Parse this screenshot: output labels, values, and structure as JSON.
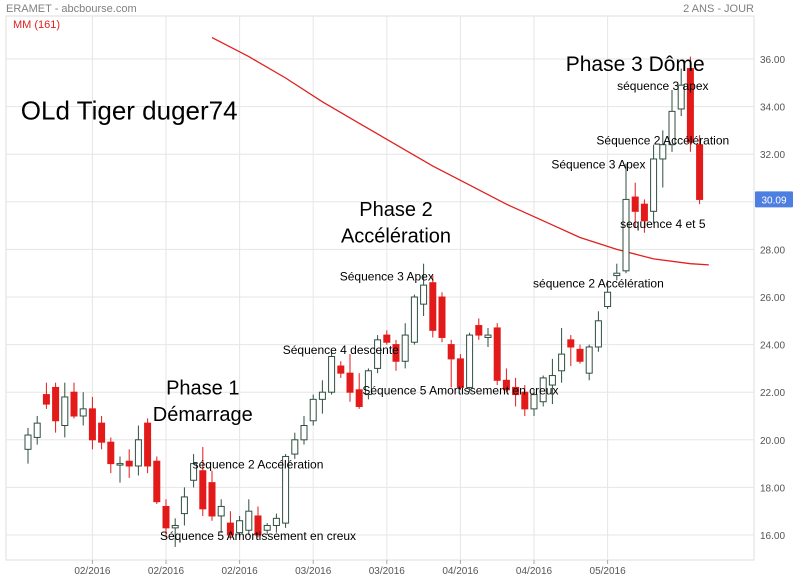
{
  "header": {
    "title": "ERAMET - abcbourse.com",
    "period": "2 ANS - JOUR",
    "indicator": "MM (161)"
  },
  "colors": {
    "up_candle": "#ffffff",
    "up_candle_stroke": "#2f4f3f",
    "down_candle": "#e31a1a",
    "moving_average": "#e02020",
    "last_price_badge": "#4d7fe0",
    "grid": "#e6e6e6",
    "axis_text": "#555555"
  },
  "chart_data": {
    "type": "candlestick",
    "title": "",
    "xlabel": "",
    "ylabel": "",
    "ylim": [
      15.2,
      37.0
    ],
    "y_ticks": [
      16,
      18,
      20,
      22,
      24,
      26,
      28,
      30,
      32,
      34,
      36
    ],
    "y_tick_labels": [
      "16.00",
      "18.00",
      "20.00",
      "22.00",
      "24.00",
      "26.00",
      "28.00",
      "30.00",
      "32.00",
      "34.00",
      "36.00"
    ],
    "x_tick_labels": [
      {
        "index": 7,
        "label": "02/2016"
      },
      {
        "index": 15,
        "label": "02/2016"
      },
      {
        "index": 23,
        "label": "02/2016"
      },
      {
        "index": 31,
        "label": "03/2016"
      },
      {
        "index": 39,
        "label": "03/2016"
      },
      {
        "index": 47,
        "label": "04/2016"
      },
      {
        "index": 55,
        "label": "04/2016"
      },
      {
        "index": 63,
        "label": "05/2016"
      }
    ],
    "last_price": "30.09",
    "candles": [
      {
        "o": 19.6,
        "h": 20.5,
        "l": 19.0,
        "c": 20.2
      },
      {
        "o": 20.1,
        "h": 21.0,
        "l": 19.8,
        "c": 20.7
      },
      {
        "o": 21.9,
        "h": 22.4,
        "l": 21.3,
        "c": 21.5
      },
      {
        "o": 22.2,
        "h": 22.4,
        "l": 20.3,
        "c": 20.8
      },
      {
        "o": 20.6,
        "h": 22.4,
        "l": 20.1,
        "c": 21.8
      },
      {
        "o": 22.0,
        "h": 22.4,
        "l": 20.9,
        "c": 21.0
      },
      {
        "o": 21.0,
        "h": 22.0,
        "l": 20.6,
        "c": 21.3
      },
      {
        "o": 21.3,
        "h": 21.8,
        "l": 19.6,
        "c": 20.0
      },
      {
        "o": 20.7,
        "h": 21.0,
        "l": 19.6,
        "c": 19.9
      },
      {
        "o": 19.9,
        "h": 20.1,
        "l": 18.6,
        "c": 19.0
      },
      {
        "o": 19.0,
        "h": 19.3,
        "l": 18.2,
        "c": 19.0
      },
      {
        "o": 19.1,
        "h": 19.6,
        "l": 18.4,
        "c": 18.9
      },
      {
        "o": 18.9,
        "h": 20.6,
        "l": 18.5,
        "c": 20.0
      },
      {
        "o": 20.7,
        "h": 20.9,
        "l": 18.6,
        "c": 18.9
      },
      {
        "o": 19.1,
        "h": 19.3,
        "l": 17.3,
        "c": 17.4
      },
      {
        "o": 17.2,
        "h": 17.5,
        "l": 15.9,
        "c": 16.3
      },
      {
        "o": 16.3,
        "h": 16.7,
        "l": 15.5,
        "c": 16.4
      },
      {
        "o": 16.9,
        "h": 18.0,
        "l": 16.4,
        "c": 17.6
      },
      {
        "o": 18.3,
        "h": 19.4,
        "l": 18.0,
        "c": 19.0
      },
      {
        "o": 18.7,
        "h": 19.7,
        "l": 16.8,
        "c": 17.1
      },
      {
        "o": 18.2,
        "h": 18.7,
        "l": 16.6,
        "c": 16.8
      },
      {
        "o": 16.8,
        "h": 17.5,
        "l": 16.1,
        "c": 17.2
      },
      {
        "o": 16.5,
        "h": 17.0,
        "l": 15.8,
        "c": 16.0
      },
      {
        "o": 16.1,
        "h": 16.8,
        "l": 15.9,
        "c": 16.6
      },
      {
        "o": 16.2,
        "h": 17.5,
        "l": 16.0,
        "c": 17.0
      },
      {
        "o": 16.8,
        "h": 17.2,
        "l": 15.9,
        "c": 16.0
      },
      {
        "o": 16.2,
        "h": 16.5,
        "l": 16.0,
        "c": 16.4
      },
      {
        "o": 16.4,
        "h": 16.9,
        "l": 16.1,
        "c": 16.7
      },
      {
        "o": 16.5,
        "h": 19.4,
        "l": 16.3,
        "c": 19.3
      },
      {
        "o": 19.4,
        "h": 20.3,
        "l": 19.2,
        "c": 20.0
      },
      {
        "o": 20.0,
        "h": 21.0,
        "l": 19.8,
        "c": 20.6
      },
      {
        "o": 20.8,
        "h": 21.9,
        "l": 20.6,
        "c": 21.7
      },
      {
        "o": 21.7,
        "h": 22.5,
        "l": 21.1,
        "c": 22.0
      },
      {
        "o": 22.0,
        "h": 23.7,
        "l": 21.9,
        "c": 23.5
      },
      {
        "o": 23.1,
        "h": 23.3,
        "l": 22.6,
        "c": 22.8
      },
      {
        "o": 22.8,
        "h": 23.6,
        "l": 21.6,
        "c": 22.0
      },
      {
        "o": 22.1,
        "h": 22.8,
        "l": 21.3,
        "c": 21.4
      },
      {
        "o": 21.9,
        "h": 23.0,
        "l": 21.7,
        "c": 22.9
      },
      {
        "o": 23.0,
        "h": 24.4,
        "l": 22.8,
        "c": 24.2
      },
      {
        "o": 24.4,
        "h": 24.6,
        "l": 24.0,
        "c": 24.1
      },
      {
        "o": 24.0,
        "h": 24.2,
        "l": 22.9,
        "c": 23.3
      },
      {
        "o": 23.3,
        "h": 24.9,
        "l": 23.0,
        "c": 24.4
      },
      {
        "o": 24.1,
        "h": 26.1,
        "l": 24.0,
        "c": 26.0
      },
      {
        "o": 25.7,
        "h": 27.4,
        "l": 25.2,
        "c": 26.5
      },
      {
        "o": 26.6,
        "h": 26.9,
        "l": 24.3,
        "c": 24.6
      },
      {
        "o": 26.0,
        "h": 26.2,
        "l": 24.1,
        "c": 24.3
      },
      {
        "o": 24.0,
        "h": 24.2,
        "l": 22.2,
        "c": 23.4
      },
      {
        "o": 23.4,
        "h": 23.6,
        "l": 22.1,
        "c": 22.2
      },
      {
        "o": 22.2,
        "h": 24.5,
        "l": 22.0,
        "c": 24.4
      },
      {
        "o": 24.8,
        "h": 25.1,
        "l": 24.2,
        "c": 24.4
      },
      {
        "o": 24.3,
        "h": 24.7,
        "l": 23.9,
        "c": 24.4
      },
      {
        "o": 24.7,
        "h": 24.9,
        "l": 22.3,
        "c": 22.5
      },
      {
        "o": 22.5,
        "h": 23.0,
        "l": 22.0,
        "c": 22.1
      },
      {
        "o": 22.2,
        "h": 22.6,
        "l": 21.4,
        "c": 21.9
      },
      {
        "o": 22.0,
        "h": 22.3,
        "l": 21.0,
        "c": 21.3
      },
      {
        "o": 21.3,
        "h": 22.1,
        "l": 21.0,
        "c": 21.9
      },
      {
        "o": 21.6,
        "h": 22.7,
        "l": 21.4,
        "c": 22.6
      },
      {
        "o": 22.3,
        "h": 23.4,
        "l": 21.5,
        "c": 22.7
      },
      {
        "o": 22.9,
        "h": 24.7,
        "l": 22.4,
        "c": 23.6
      },
      {
        "o": 24.2,
        "h": 24.4,
        "l": 23.1,
        "c": 23.9
      },
      {
        "o": 23.8,
        "h": 24.0,
        "l": 23.2,
        "c": 23.3
      },
      {
        "o": 22.8,
        "h": 24.0,
        "l": 22.5,
        "c": 23.9
      },
      {
        "o": 23.9,
        "h": 25.4,
        "l": 23.7,
        "c": 25.0
      },
      {
        "o": 25.6,
        "h": 26.7,
        "l": 25.5,
        "c": 26.2
      },
      {
        "o": 26.9,
        "h": 27.4,
        "l": 26.7,
        "c": 27.0
      },
      {
        "o": 27.1,
        "h": 31.6,
        "l": 27.0,
        "c": 30.1
      },
      {
        "o": 30.2,
        "h": 30.8,
        "l": 28.9,
        "c": 29.6
      },
      {
        "o": 29.9,
        "h": 30.1,
        "l": 28.7,
        "c": 29.2
      },
      {
        "o": 29.6,
        "h": 32.4,
        "l": 29.1,
        "c": 31.8
      },
      {
        "o": 31.8,
        "h": 33.0,
        "l": 30.6,
        "c": 32.4
      },
      {
        "o": 32.4,
        "h": 34.7,
        "l": 32.1,
        "c": 33.8
      },
      {
        "o": 33.9,
        "h": 35.6,
        "l": 33.6,
        "c": 34.9
      },
      {
        "o": 35.6,
        "h": 36.1,
        "l": 32.1,
        "c": 32.5
      },
      {
        "o": 32.4,
        "h": 32.8,
        "l": 29.9,
        "c": 30.1
      }
    ],
    "moving_average": {
      "name": "MM (161)",
      "points": [
        {
          "i": 20,
          "v": 36.9
        },
        {
          "i": 24,
          "v": 36.1
        },
        {
          "i": 28,
          "v": 35.2
        },
        {
          "i": 32,
          "v": 34.2
        },
        {
          "i": 36,
          "v": 33.3
        },
        {
          "i": 40,
          "v": 32.4
        },
        {
          "i": 44,
          "v": 31.5
        },
        {
          "i": 48,
          "v": 30.7
        },
        {
          "i": 52,
          "v": 29.9
        },
        {
          "i": 56,
          "v": 29.2
        },
        {
          "i": 60,
          "v": 28.5
        },
        {
          "i": 64,
          "v": 28.0
        },
        {
          "i": 68,
          "v": 27.6
        },
        {
          "i": 72,
          "v": 27.4
        },
        {
          "i": 74,
          "v": 27.35
        }
      ]
    },
    "annotations": [
      {
        "text": "OLd Tiger duger74",
        "i": 11,
        "v": 33.45,
        "size": 26
      },
      {
        "text": "Phase 1",
        "i": 19,
        "v": 21.9,
        "size": 20
      },
      {
        "text": "Démarrage",
        "i": 19,
        "v": 20.8,
        "size": 20
      },
      {
        "text": "Phase 2",
        "i": 40,
        "v": 29.4,
        "size": 20
      },
      {
        "text": "Accélération",
        "i": 40,
        "v": 28.3,
        "size": 20
      },
      {
        "text": "Phase 3 Dôme",
        "i": 66,
        "v": 35.5,
        "size": 21
      },
      {
        "text": "séquence 3 apex",
        "i": 69,
        "v": 34.7,
        "size": 12
      },
      {
        "text": "Séquence 2 Accélération",
        "i": 69,
        "v": 32.4,
        "size": 12
      },
      {
        "text": "Séquence 3 Apex",
        "i": 62,
        "v": 31.4,
        "size": 12
      },
      {
        "text": "sequence 4 et 5",
        "i": 69,
        "v": 28.9,
        "size": 12
      },
      {
        "text": "séquence 2 Accélération",
        "i": 62,
        "v": 26.4,
        "size": 12
      },
      {
        "text": "Séquence 3 Apex",
        "i": 39,
        "v": 26.7,
        "size": 12
      },
      {
        "text": "Séquence 4 descente",
        "i": 34,
        "v": 23.6,
        "size": 12
      },
      {
        "text": "Séquence 5 Amortissement en creux",
        "i": 47,
        "v": 21.9,
        "size": 12
      },
      {
        "text": "séquence 2 Accélération",
        "i": 25,
        "v": 18.8,
        "size": 12
      },
      {
        "text": "Séquence 5 Amortissement en creux",
        "i": 25,
        "v": 15.8,
        "size": 12
      }
    ]
  }
}
